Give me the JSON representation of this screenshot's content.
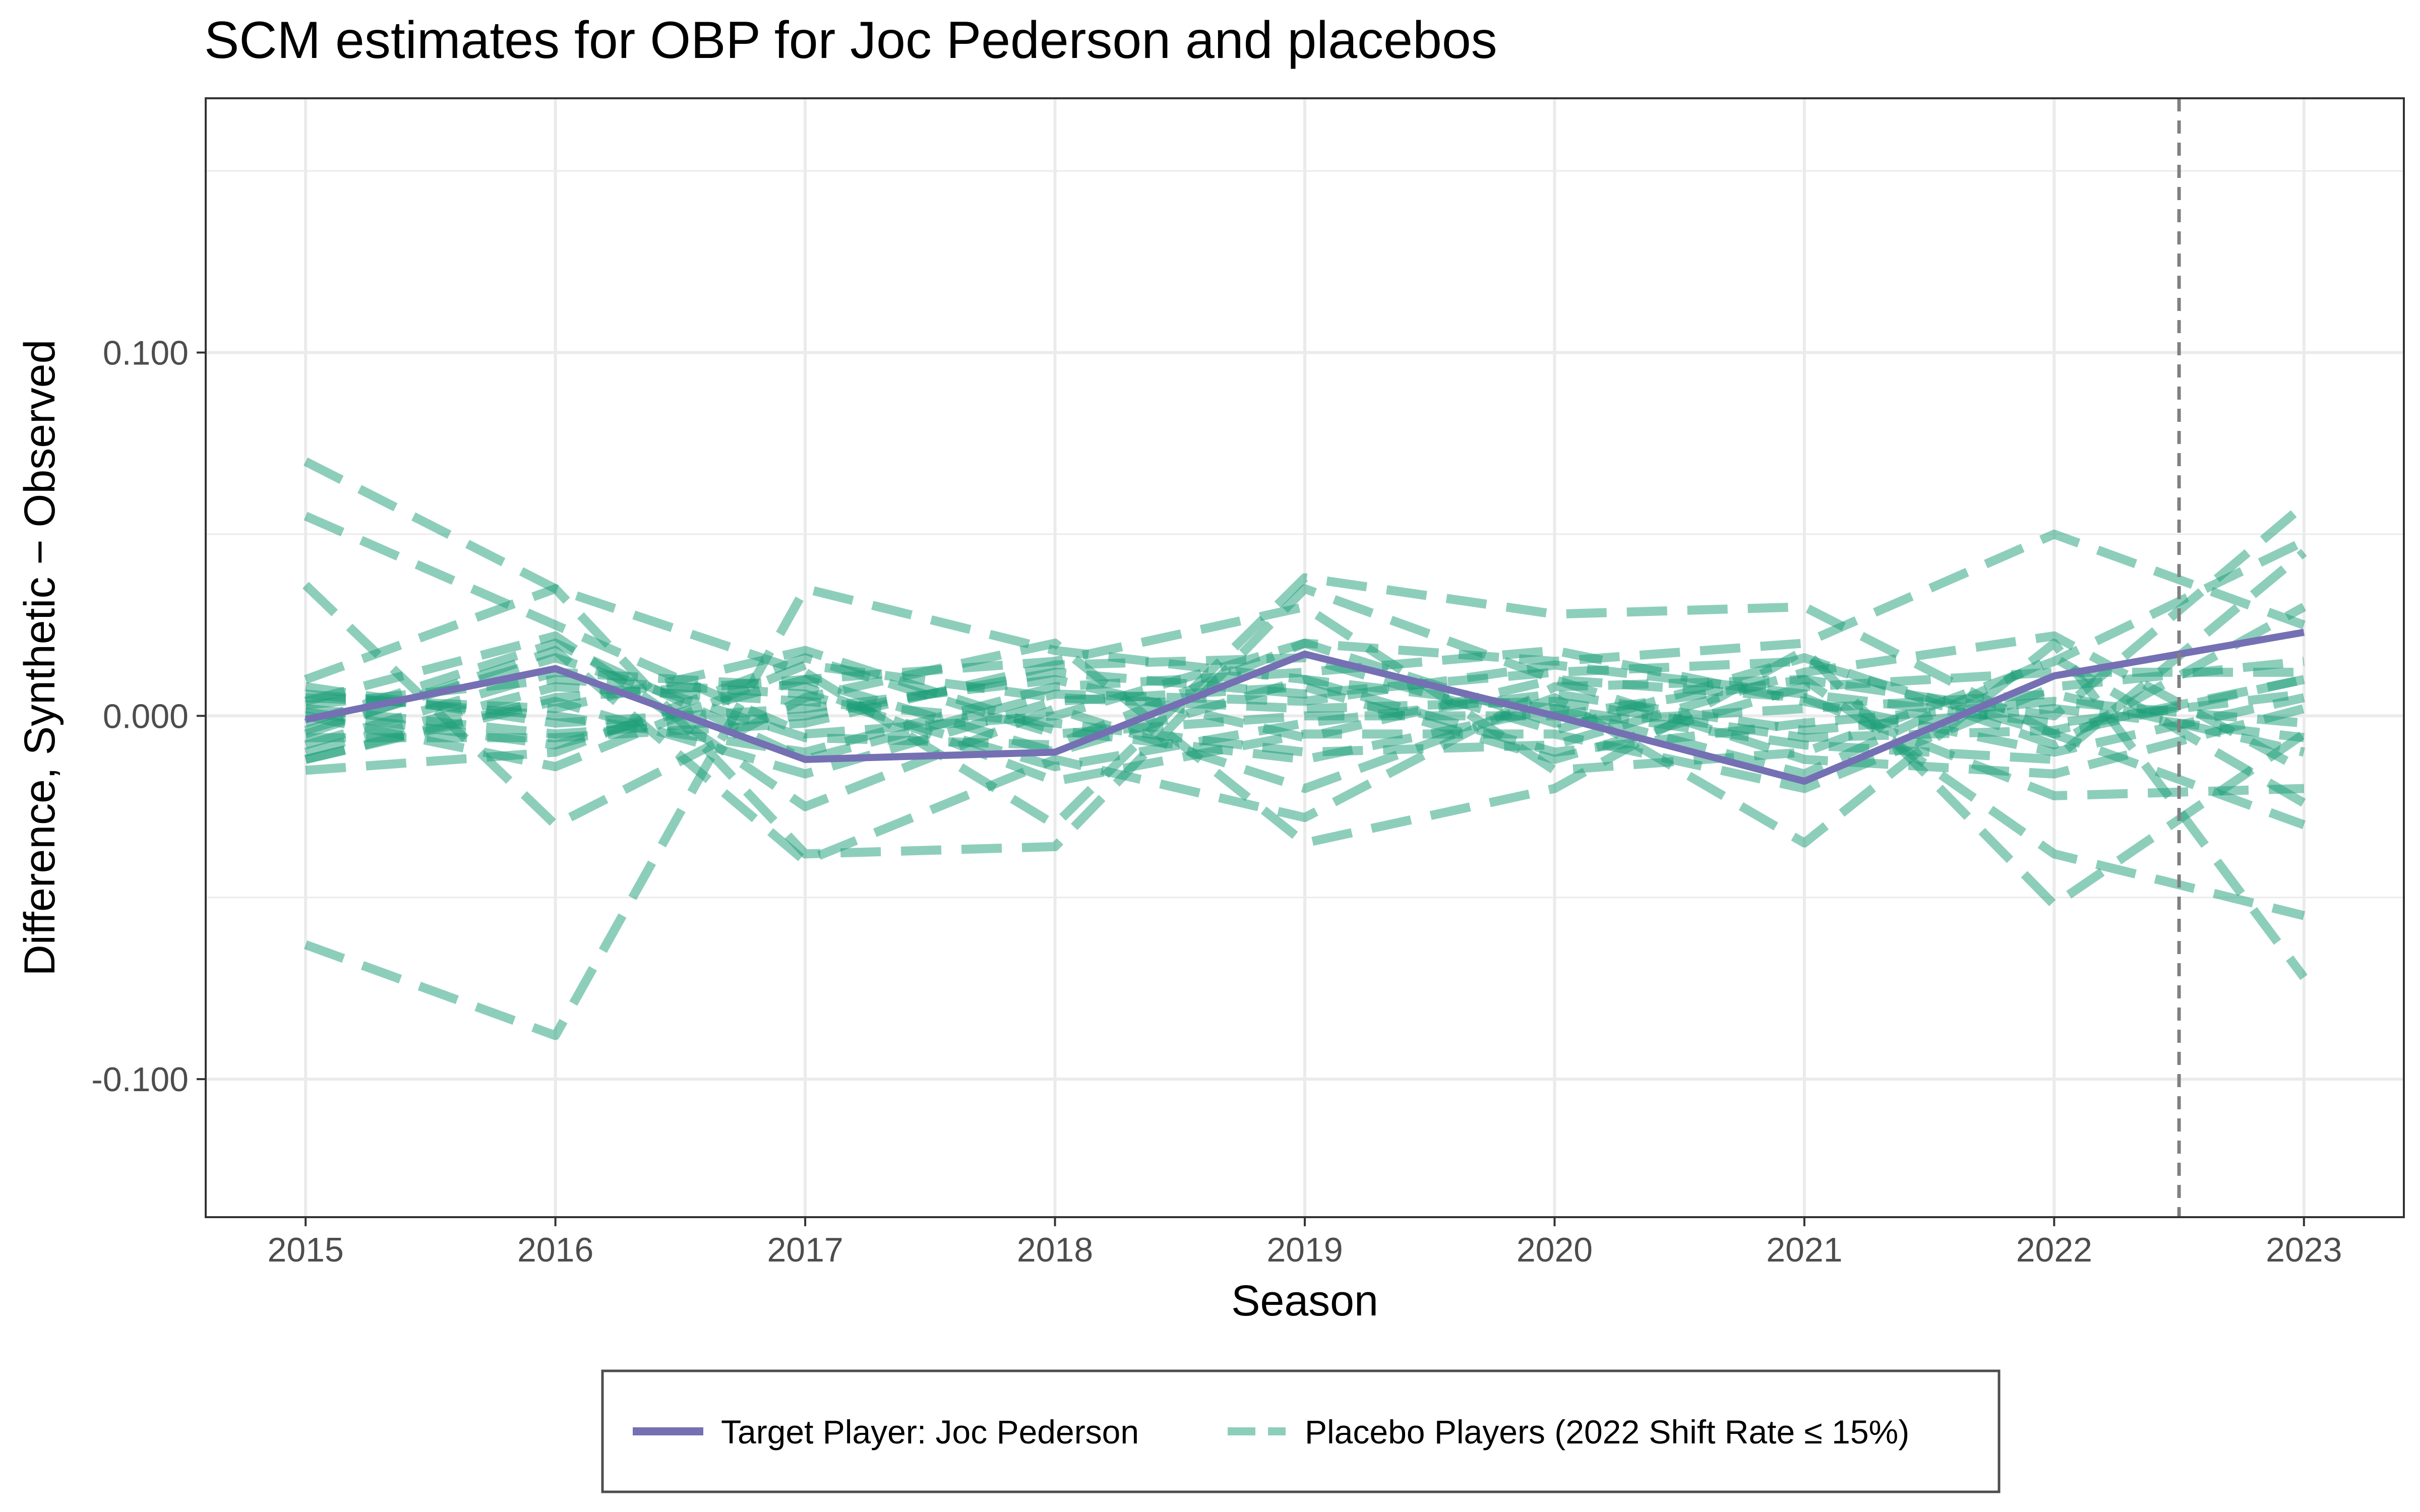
{
  "chart_data": {
    "type": "line",
    "title": "SCM estimates for OBP for Joc Pederson and placebos",
    "xlabel": "Season",
    "ylabel": "Difference, Synthetic − Observed",
    "x": [
      2015,
      2016,
      2017,
      2018,
      2019,
      2020,
      2021,
      2022,
      2023
    ],
    "xlim": [
      2014.6,
      2023.4
    ],
    "ylim": [
      -0.138,
      0.17
    ],
    "y_ticks": [
      -0.1,
      0.0,
      0.1
    ],
    "y_tick_labels": [
      "-0.100",
      "0.000",
      "0.100"
    ],
    "x_tick_labels": [
      "2015",
      "2016",
      "2017",
      "2018",
      "2019",
      "2020",
      "2021",
      "2022",
      "2023"
    ],
    "grid": true,
    "reference_line": {
      "x": 2022.5,
      "style": "dashed",
      "color": "#808080"
    },
    "legend_position": "bottom",
    "colors": {
      "target": "#7570B3",
      "placebo": "#1B9E77"
    },
    "target_series": {
      "name": "Target Player: Joc Pederson",
      "values": [
        -0.001,
        0.013,
        -0.012,
        -0.01,
        0.017,
        0.0,
        -0.018,
        0.011,
        0.023
      ]
    },
    "placebo_name": "Placebo Players (2022 Shift Rate ≤ 15%)",
    "placebo_series": [
      [
        -0.063,
        -0.088,
        0.035,
        0.018,
        0.01,
        0.002,
        -0.008,
        -0.012,
        0.045
      ],
      [
        0.07,
        0.035,
        0.012,
        -0.03,
        0.038,
        0.028,
        0.03,
        -0.005,
        0.01
      ],
      [
        0.055,
        0.025,
        -0.005,
        0.0,
        0.02,
        0.015,
        0.02,
        0.05,
        0.025
      ],
      [
        0.036,
        -0.03,
        0.005,
        0.02,
        -0.035,
        -0.02,
        0.018,
        -0.052,
        -0.005
      ],
      [
        0.01,
        0.035,
        -0.038,
        -0.036,
        0.035,
        0.01,
        0.005,
        -0.022,
        -0.02
      ],
      [
        0.004,
        0.022,
        -0.025,
        0.002,
        -0.02,
        0.005,
        -0.035,
        0.02,
        -0.072
      ],
      [
        -0.005,
        0.018,
        -0.04,
        -0.012,
        -0.028,
        0.008,
        0.01,
        -0.038,
        -0.055
      ],
      [
        -0.012,
        0.005,
        0.01,
        0.015,
        0.03,
        -0.015,
        -0.01,
        0.015,
        0.048
      ],
      [
        -0.015,
        -0.01,
        0.016,
        -0.005,
        0.0,
        0.0,
        0.01,
        0.0,
        0.058
      ],
      [
        0.002,
        -0.005,
        0.0,
        0.012,
        0.006,
        0.012,
        0.015,
        -0.005,
        -0.03
      ],
      [
        -0.008,
        0.012,
        0.008,
        -0.018,
        -0.005,
        -0.005,
        -0.02,
        0.008,
        0.015
      ],
      [
        0.006,
        0.0,
        -0.01,
        0.008,
        0.012,
        0.018,
        0.004,
        -0.01,
        0.005
      ],
      [
        -0.01,
        0.008,
        0.004,
        -0.002,
        -0.01,
        -0.008,
        0.012,
        0.022,
        -0.015
      ],
      [
        0.0,
        -0.014,
        0.014,
        0.005,
        0.002,
        0.004,
        -0.006,
        -0.004,
        0.01
      ],
      [
        -0.004,
        0.016,
        -0.006,
        -0.008,
        0.02,
        -0.002,
        0.002,
        0.006,
        -0.01
      ],
      [
        0.008,
        -0.002,
        0.002,
        0.01,
        -0.006,
        0.01,
        -0.012,
        -0.016,
        0.002
      ],
      [
        -0.012,
        0.004,
        -0.016,
        0.004,
        0.008,
        -0.012,
        0.008,
        0.012,
        0.012
      ],
      [
        0.003,
        0.01,
        0.006,
        -0.014,
        -0.002,
        0.006,
        -0.004,
        0.002,
        -0.006
      ],
      [
        -0.006,
        -0.006,
        -0.002,
        0.014,
        0.016,
        -0.004,
        0.016,
        -0.008,
        0.03
      ],
      [
        0.005,
        0.002,
        0.018,
        -0.004,
        -0.012,
        0.002,
        -0.016,
        0.016,
        -0.024
      ],
      [
        -0.002,
        0.02,
        -0.012,
        0.006,
        0.004,
        0.014,
        0.006,
        -0.002,
        0.006
      ],
      [
        0.001,
        -0.008,
        0.01,
        -0.01,
        0.01,
        -0.01,
        -0.002,
        0.004,
        -0.002
      ]
    ]
  },
  "legend": {
    "target_label": "Target Player: Joc Pederson",
    "placebo_label": "Placebo Players (2022 Shift Rate ≤ 15%)"
  }
}
